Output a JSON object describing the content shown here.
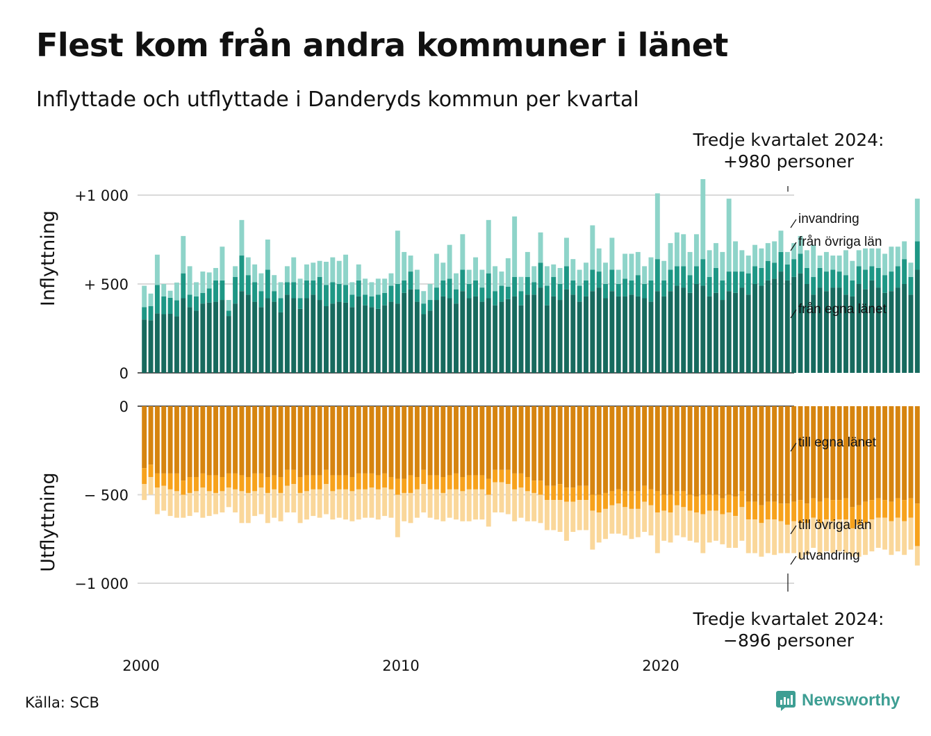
{
  "title": "Flest kom från andra kommuner i länet",
  "subtitle": "Inflyttade och utflyttade i Danderyds kommun per kvartal",
  "annotation_top": {
    "line1": "Tredje kvartalet 2024:",
    "line2": "+980 personer"
  },
  "annotation_bottom": {
    "line1": "Tredje kvartalet 2024:",
    "line2": "−896 personer"
  },
  "source": "Källa: SCB",
  "brand": "Newsworthy",
  "colors": {
    "in_own": "#176a5e",
    "in_other": "#1e9785",
    "in_abroad": "#8ed4c9",
    "out_own": "#d6840f",
    "out_other": "#f7a21c",
    "out_abroad": "#fad79a",
    "grid": "#d9d9d9",
    "axis": "#222222",
    "brand": "#3d9e93"
  },
  "chart_data": [
    {
      "type": "bar",
      "stacked": true,
      "axis_title": "Inflyttning",
      "x_ticks": [
        "2000",
        "2010",
        "2020"
      ],
      "y_ticks": [
        {
          "value": 0,
          "label": "0"
        },
        {
          "value": 500,
          "label": "+  500"
        },
        {
          "value": 1000,
          "label": "+1 000"
        }
      ],
      "ylim": [
        0,
        1050
      ],
      "grid": true,
      "series_labels": [
        "från egna länet",
        "från övriga län",
        "invandring"
      ],
      "series": [
        {
          "name": "från egna länet",
          "values": [
            300,
            296,
            335,
            330,
            332,
            318,
            420,
            370,
            350,
            390,
            395,
            400,
            410,
            320,
            390,
            460,
            440,
            400,
            370,
            420,
            400,
            340,
            440,
            420,
            360,
            420,
            440,
            410,
            375,
            390,
            400,
            395,
            370,
            430,
            380,
            370,
            360,
            380,
            400,
            390,
            450,
            470,
            400,
            330,
            350,
            410,
            430,
            420,
            390,
            460,
            420,
            430,
            400,
            420,
            380,
            400,
            415,
            430,
            380,
            440,
            440,
            480,
            380,
            430,
            410,
            470,
            440,
            400,
            430,
            460,
            480,
            420,
            460,
            430,
            430,
            440,
            430,
            420,
            400,
            460,
            430,
            460,
            490,
            480,
            450,
            500,
            490,
            430,
            450,
            410,
            460,
            450,
            480,
            440,
            500,
            490,
            520,
            530,
            570,
            520,
            540,
            560,
            500,
            440,
            480,
            460,
            480,
            480,
            440,
            430,
            500,
            470,
            520,
            480,
            450,
            460,
            480,
            500,
            440,
            580
          ]
        },
        {
          "name": "från övriga län",
          "values": [
            70,
            80,
            160,
            100,
            90,
            90,
            140,
            70,
            80,
            60,
            80,
            120,
            110,
            30,
            150,
            200,
            110,
            110,
            90,
            160,
            60,
            80,
            70,
            90,
            60,
            100,
            80,
            130,
            120,
            120,
            100,
            100,
            70,
            90,
            60,
            60,
            80,
            70,
            90,
            110,
            70,
            100,
            70,
            60,
            60,
            70,
            90,
            110,
            80,
            120,
            80,
            90,
            80,
            140,
            80,
            90,
            70,
            110,
            80,
            100,
            70,
            140,
            110,
            110,
            90,
            130,
            80,
            90,
            90,
            120,
            90,
            80,
            120,
            70,
            100,
            80,
            120,
            80,
            120,
            180,
            90,
            120,
            110,
            120,
            100,
            100,
            150,
            110,
            140,
            110,
            110,
            120,
            90,
            120,
            100,
            100,
            110,
            90,
            110,
            90,
            100,
            110,
            90,
            100,
            110,
            110,
            100,
            90,
            110,
            90,
            100,
            110,
            80,
            110,
            100,
            110,
            120,
            140,
            100,
            160
          ]
        },
        {
          "name": "invandring",
          "values": [
            120,
            70,
            170,
            70,
            40,
            100,
            210,
            160,
            80,
            120,
            90,
            70,
            190,
            60,
            60,
            200,
            100,
            100,
            100,
            170,
            90,
            90,
            90,
            140,
            110,
            90,
            100,
            90,
            130,
            140,
            130,
            170,
            70,
            90,
            90,
            80,
            90,
            80,
            70,
            300,
            160,
            90,
            110,
            70,
            90,
            190,
            100,
            190,
            90,
            200,
            80,
            130,
            100,
            300,
            140,
            80,
            160,
            340,
            80,
            140,
            90,
            170,
            110,
            70,
            90,
            160,
            120,
            90,
            100,
            250,
            130,
            120,
            180,
            80,
            140,
            150,
            130,
            100,
            130,
            370,
            110,
            150,
            190,
            180,
            130,
            180,
            450,
            150,
            140,
            160,
            410,
            170,
            120,
            100,
            120,
            110,
            100,
            120,
            120,
            70,
            90,
            100,
            100,
            180,
            70,
            110,
            80,
            90,
            140,
            110,
            90,
            120,
            100,
            110,
            120,
            140,
            110,
            100,
            80,
            240
          ]
        }
      ]
    },
    {
      "type": "bar",
      "stacked": true,
      "axis_title": "Utflyttning",
      "x_ticks": [
        "2000",
        "2010",
        "2020"
      ],
      "y_ticks": [
        {
          "value": 0,
          "label": "0"
        },
        {
          "value": -500,
          "label": "−  500"
        },
        {
          "value": -1000,
          "label": "−1 000"
        }
      ],
      "ylim": [
        -1050,
        0
      ],
      "grid": true,
      "series_labels": [
        "till egna länet",
        "till övriga län",
        "utvandring"
      ],
      "series": [
        {
          "name": "till egna länet",
          "values": [
            -350,
            -330,
            -380,
            -380,
            -380,
            -380,
            -420,
            -400,
            -400,
            -380,
            -390,
            -390,
            -400,
            -380,
            -380,
            -390,
            -400,
            -380,
            -380,
            -400,
            -390,
            -400,
            -360,
            -360,
            -400,
            -390,
            -390,
            -390,
            -360,
            -390,
            -390,
            -390,
            -400,
            -380,
            -380,
            -380,
            -390,
            -380,
            -400,
            -410,
            -410,
            -390,
            -400,
            -360,
            -390,
            -390,
            -400,
            -390,
            -380,
            -400,
            -390,
            -390,
            -390,
            -410,
            -360,
            -360,
            -360,
            -380,
            -380,
            -400,
            -420,
            -420,
            -450,
            -450,
            -440,
            -460,
            -460,
            -450,
            -450,
            -500,
            -500,
            -490,
            -480,
            -470,
            -480,
            -480,
            -480,
            -450,
            -470,
            -480,
            -500,
            -500,
            -480,
            -480,
            -500,
            -510,
            -500,
            -500,
            -500,
            -520,
            -500,
            -510,
            -480,
            -540,
            -540,
            -560,
            -540,
            -540,
            -550,
            -550,
            -540,
            -530,
            -550,
            -520,
            -540,
            -520,
            -530,
            -530,
            -520,
            -570,
            -560,
            -540,
            -530,
            -520,
            -530,
            -540,
            -520,
            -530,
            -520,
            -550
          ]
        },
        {
          "name": "till övriga län",
          "values": [
            -90,
            -70,
            -80,
            -70,
            -90,
            -100,
            -80,
            -90,
            -80,
            -80,
            -90,
            -100,
            -80,
            -80,
            -90,
            -90,
            -90,
            -100,
            -80,
            -90,
            -80,
            -90,
            -90,
            -80,
            -90,
            -90,
            -80,
            -80,
            -80,
            -90,
            -80,
            -80,
            -80,
            -90,
            -90,
            -80,
            -80,
            -80,
            -70,
            -90,
            -80,
            -100,
            -70,
            -80,
            -80,
            -80,
            -90,
            -80,
            -90,
            -80,
            -80,
            -80,
            -80,
            -90,
            -70,
            -70,
            -80,
            -90,
            -80,
            -80,
            -70,
            -80,
            -80,
            -80,
            -90,
            -80,
            -80,
            -80,
            -80,
            -90,
            -100,
            -90,
            -80,
            -80,
            -90,
            -100,
            -100,
            -90,
            -90,
            -120,
            -90,
            -100,
            -80,
            -90,
            -90,
            -90,
            -110,
            -90,
            -90,
            -90,
            -100,
            -110,
            -90,
            -100,
            -100,
            -100,
            -100,
            -100,
            -100,
            -120,
            -110,
            -130,
            -110,
            -110,
            -120,
            -120,
            -120,
            -110,
            -120,
            -120,
            -110,
            -120,
            -110,
            -110,
            -100,
            -110,
            -110,
            -120,
            -110,
            -240
          ]
        },
        {
          "name": "utvandring",
          "values": [
            -90,
            -100,
            -150,
            -140,
            -150,
            -150,
            -130,
            -130,
            -120,
            -170,
            -140,
            -120,
            -120,
            -110,
            -130,
            -180,
            -170,
            -140,
            -150,
            -170,
            -160,
            -160,
            -150,
            -160,
            -170,
            -160,
            -150,
            -160,
            -170,
            -160,
            -160,
            -170,
            -170,
            -170,
            -160,
            -170,
            -170,
            -160,
            -160,
            -240,
            -160,
            -170,
            -160,
            -160,
            -160,
            -170,
            -160,
            -160,
            -170,
            -170,
            -180,
            -170,
            -170,
            -180,
            -170,
            -170,
            -170,
            -180,
            -170,
            -170,
            -160,
            -160,
            -170,
            -170,
            -180,
            -220,
            -170,
            -170,
            -170,
            -220,
            -170,
            -170,
            -160,
            -170,
            -160,
            -170,
            -160,
            -170,
            -170,
            -230,
            -170,
            -170,
            -170,
            -170,
            -170,
            -170,
            -220,
            -180,
            -170,
            -170,
            -200,
            -180,
            -190,
            -190,
            -190,
            -190,
            -190,
            -200,
            -180,
            -160,
            -180,
            -200,
            -180,
            -170,
            -180,
            -180,
            -180,
            -180,
            -190,
            -160,
            -180,
            -180,
            -180,
            -170,
            -180,
            -190,
            -190,
            -190,
            -180,
            -110
          ]
        }
      ]
    }
  ]
}
